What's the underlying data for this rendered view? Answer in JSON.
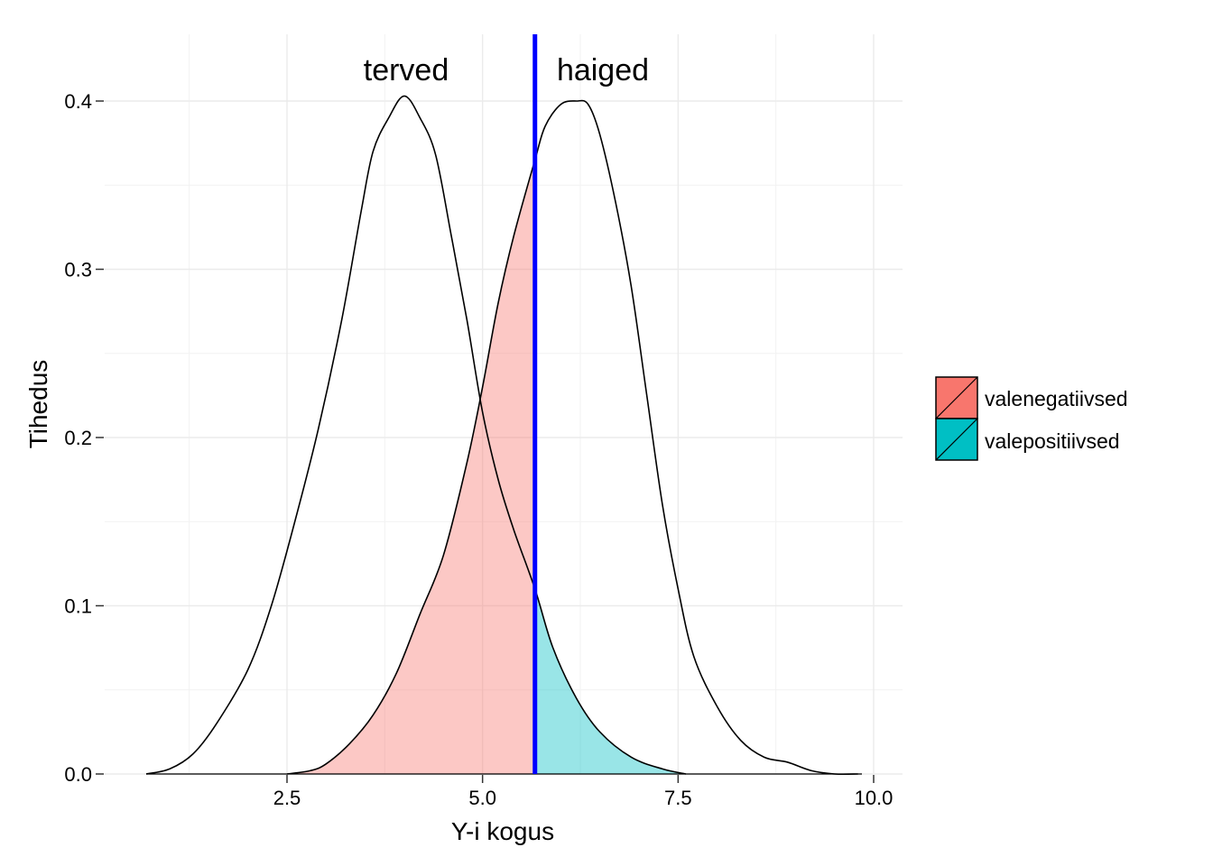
{
  "chart_data": {
    "type": "area",
    "xlabel": "Y-i kogus",
    "ylabel": "Tihedus",
    "xlim": [
      0.6,
      10.0
    ],
    "ylim": [
      0.0,
      0.43
    ],
    "x_ticks": [
      2.5,
      5.0,
      7.5,
      10.0
    ],
    "x_tick_labels": [
      "2.5",
      "5.0",
      "7.5",
      "10.0"
    ],
    "y_ticks": [
      0.0,
      0.1,
      0.2,
      0.3,
      0.4
    ],
    "y_tick_labels": [
      "0.0",
      "0.1",
      "0.2",
      "0.3",
      "0.4"
    ],
    "grid": true,
    "legend_position": "right",
    "threshold": {
      "x": 5.67,
      "color": "#0000ff"
    },
    "annotations": [
      {
        "text": "terved",
        "x": 4.0,
        "y": 0.419
      },
      {
        "text": "haiged",
        "x": 6.5,
        "y": 0.419
      }
    ],
    "series": [
      {
        "name": "terved",
        "color": "#000000",
        "points": [
          [
            0.7,
            0.0
          ],
          [
            1.0,
            0.003
          ],
          [
            1.3,
            0.012
          ],
          [
            1.6,
            0.03
          ],
          [
            2.0,
            0.062
          ],
          [
            2.3,
            0.1
          ],
          [
            2.6,
            0.15
          ],
          [
            2.9,
            0.205
          ],
          [
            3.2,
            0.27
          ],
          [
            3.45,
            0.335
          ],
          [
            3.6,
            0.37
          ],
          [
            3.8,
            0.39
          ],
          [
            4.0,
            0.403
          ],
          [
            4.2,
            0.39
          ],
          [
            4.4,
            0.368
          ],
          [
            4.6,
            0.32
          ],
          [
            4.8,
            0.27
          ],
          [
            5.0,
            0.215
          ],
          [
            5.2,
            0.175
          ],
          [
            5.4,
            0.145
          ],
          [
            5.67,
            0.11
          ],
          [
            5.9,
            0.075
          ],
          [
            6.2,
            0.045
          ],
          [
            6.5,
            0.025
          ],
          [
            6.9,
            0.01
          ],
          [
            7.3,
            0.003
          ],
          [
            7.6,
            0.0
          ]
        ]
      },
      {
        "name": "haiged",
        "color": "#000000",
        "points": [
          [
            2.5,
            0.0
          ],
          [
            2.8,
            0.002
          ],
          [
            3.0,
            0.006
          ],
          [
            3.3,
            0.018
          ],
          [
            3.6,
            0.035
          ],
          [
            3.9,
            0.06
          ],
          [
            4.2,
            0.095
          ],
          [
            4.5,
            0.13
          ],
          [
            4.8,
            0.185
          ],
          [
            5.0,
            0.23
          ],
          [
            5.2,
            0.28
          ],
          [
            5.4,
            0.32
          ],
          [
            5.67,
            0.365
          ],
          [
            5.8,
            0.385
          ],
          [
            6.0,
            0.398
          ],
          [
            6.2,
            0.4
          ],
          [
            6.35,
            0.398
          ],
          [
            6.5,
            0.38
          ],
          [
            6.7,
            0.34
          ],
          [
            6.9,
            0.29
          ],
          [
            7.1,
            0.225
          ],
          [
            7.3,
            0.16
          ],
          [
            7.5,
            0.11
          ],
          [
            7.7,
            0.07
          ],
          [
            8.0,
            0.04
          ],
          [
            8.3,
            0.02
          ],
          [
            8.6,
            0.01
          ],
          [
            8.9,
            0.007
          ],
          [
            9.2,
            0.002
          ],
          [
            9.5,
            0.0
          ],
          [
            9.8,
            0.0
          ]
        ]
      }
    ],
    "fill_regions": [
      {
        "name": "valenegatiivsed",
        "color": "#F8766D",
        "source_series": "haiged",
        "x_from": 2.5,
        "x_to": 5.67
      },
      {
        "name": "valepositiivsed",
        "color": "#00BFC4",
        "source_series": "terved",
        "x_from": 5.67,
        "x_to": 7.6
      }
    ],
    "legend": [
      {
        "label": "valenegatiivsed",
        "color": "#F8766D"
      },
      {
        "label": "valepositiivsed",
        "color": "#00BFC4"
      }
    ]
  }
}
